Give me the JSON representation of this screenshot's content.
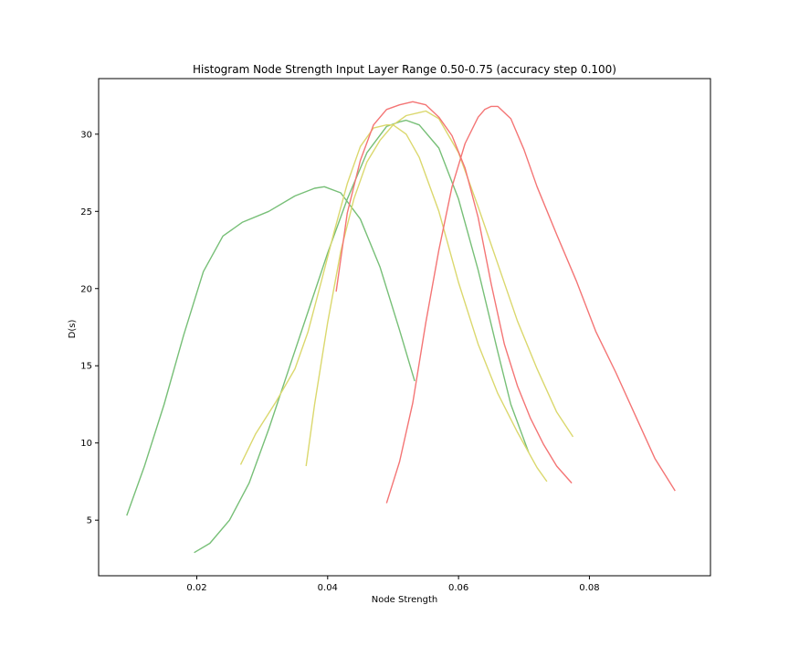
{
  "chart_data": {
    "type": "line",
    "title": "Histogram Node Strength Input Layer Range 0.50-0.75 (accuracy step 0.100)",
    "xlabel": "Node Strength",
    "ylabel": "D(s)",
    "xlim": [
      0.005,
      0.0985
    ],
    "ylim": [
      1.4,
      33.6
    ],
    "xticks": [
      0.02,
      0.04,
      0.06,
      0.08
    ],
    "xtick_labels": [
      "0.02",
      "0.04",
      "0.06",
      "0.08"
    ],
    "yticks": [
      5,
      10,
      15,
      20,
      25,
      30
    ],
    "ytick_labels": [
      "5",
      "10",
      "15",
      "20",
      "25",
      "30"
    ],
    "grid": false,
    "legend": "none",
    "colors": {
      "green": "#77bf77",
      "yellow": "#dbd86e",
      "red": "#f47575"
    },
    "series": [
      {
        "color": "green",
        "x": [
          0.0093,
          0.012,
          0.015,
          0.018,
          0.021,
          0.024,
          0.027,
          0.031,
          0.035,
          0.038,
          0.0395,
          0.042,
          0.045,
          0.048,
          0.051,
          0.0533
        ],
        "y": [
          5.3,
          8.5,
          12.5,
          17.0,
          21.1,
          23.4,
          24.3,
          25.0,
          26.0,
          26.5,
          26.6,
          26.2,
          24.5,
          21.4,
          17.3,
          14.0
        ]
      },
      {
        "color": "green",
        "x": [
          0.0196,
          0.022,
          0.025,
          0.028,
          0.031,
          0.034,
          0.037,
          0.04,
          0.043,
          0.046,
          0.049,
          0.051,
          0.052,
          0.054,
          0.057,
          0.06,
          0.063,
          0.066,
          0.068,
          0.0707
        ],
        "y": [
          2.9,
          3.5,
          5.0,
          7.4,
          10.9,
          14.7,
          18.5,
          22.3,
          25.8,
          28.8,
          30.5,
          30.8,
          30.9,
          30.6,
          29.1,
          25.8,
          21.2,
          15.9,
          12.5,
          9.4
        ]
      },
      {
        "color": "yellow",
        "x": [
          0.0267,
          0.029,
          0.032,
          0.035,
          0.037,
          0.039,
          0.041,
          0.043,
          0.045,
          0.047,
          0.049,
          0.05,
          0.052,
          0.054,
          0.057,
          0.06,
          0.063,
          0.066,
          0.069,
          0.072,
          0.0735
        ],
        "y": [
          8.6,
          10.6,
          12.6,
          14.8,
          17.2,
          20.4,
          23.7,
          26.8,
          29.2,
          30.4,
          30.6,
          30.6,
          30.0,
          28.5,
          25.0,
          20.4,
          16.4,
          13.2,
          10.7,
          8.4,
          7.5
        ]
      },
      {
        "color": "yellow",
        "x": [
          0.0367,
          0.038,
          0.04,
          0.042,
          0.044,
          0.046,
          0.048,
          0.05,
          0.052,
          0.054,
          0.055,
          0.057,
          0.06,
          0.063,
          0.066,
          0.069,
          0.072,
          0.075,
          0.0775
        ],
        "y": [
          8.5,
          12.5,
          17.8,
          22.4,
          25.8,
          28.2,
          29.6,
          30.6,
          31.2,
          31.4,
          31.5,
          31.0,
          28.8,
          25.3,
          21.6,
          17.9,
          14.8,
          12.0,
          10.4
        ]
      },
      {
        "color": "red",
        "x": [
          0.0413,
          0.043,
          0.045,
          0.047,
          0.049,
          0.051,
          0.053,
          0.055,
          0.057,
          0.059,
          0.061,
          0.063,
          0.065,
          0.067,
          0.069,
          0.071,
          0.073,
          0.075,
          0.0773
        ],
        "y": [
          19.8,
          24.9,
          28.3,
          30.6,
          31.6,
          31.9,
          32.1,
          31.9,
          31.1,
          29.9,
          27.8,
          24.6,
          20.3,
          16.4,
          13.7,
          11.6,
          9.9,
          8.5,
          7.4
        ]
      },
      {
        "color": "red",
        "x": [
          0.049,
          0.051,
          0.053,
          0.055,
          0.057,
          0.059,
          0.061,
          0.063,
          0.064,
          0.065,
          0.066,
          0.068,
          0.07,
          0.072,
          0.075,
          0.078,
          0.081,
          0.084,
          0.087,
          0.09,
          0.0931
        ],
        "y": [
          6.1,
          8.8,
          12.6,
          17.8,
          22.5,
          26.6,
          29.4,
          31.1,
          31.6,
          31.8,
          31.8,
          31.0,
          29.0,
          26.6,
          23.5,
          20.5,
          17.2,
          14.6,
          11.8,
          9.0,
          6.9
        ]
      }
    ]
  }
}
